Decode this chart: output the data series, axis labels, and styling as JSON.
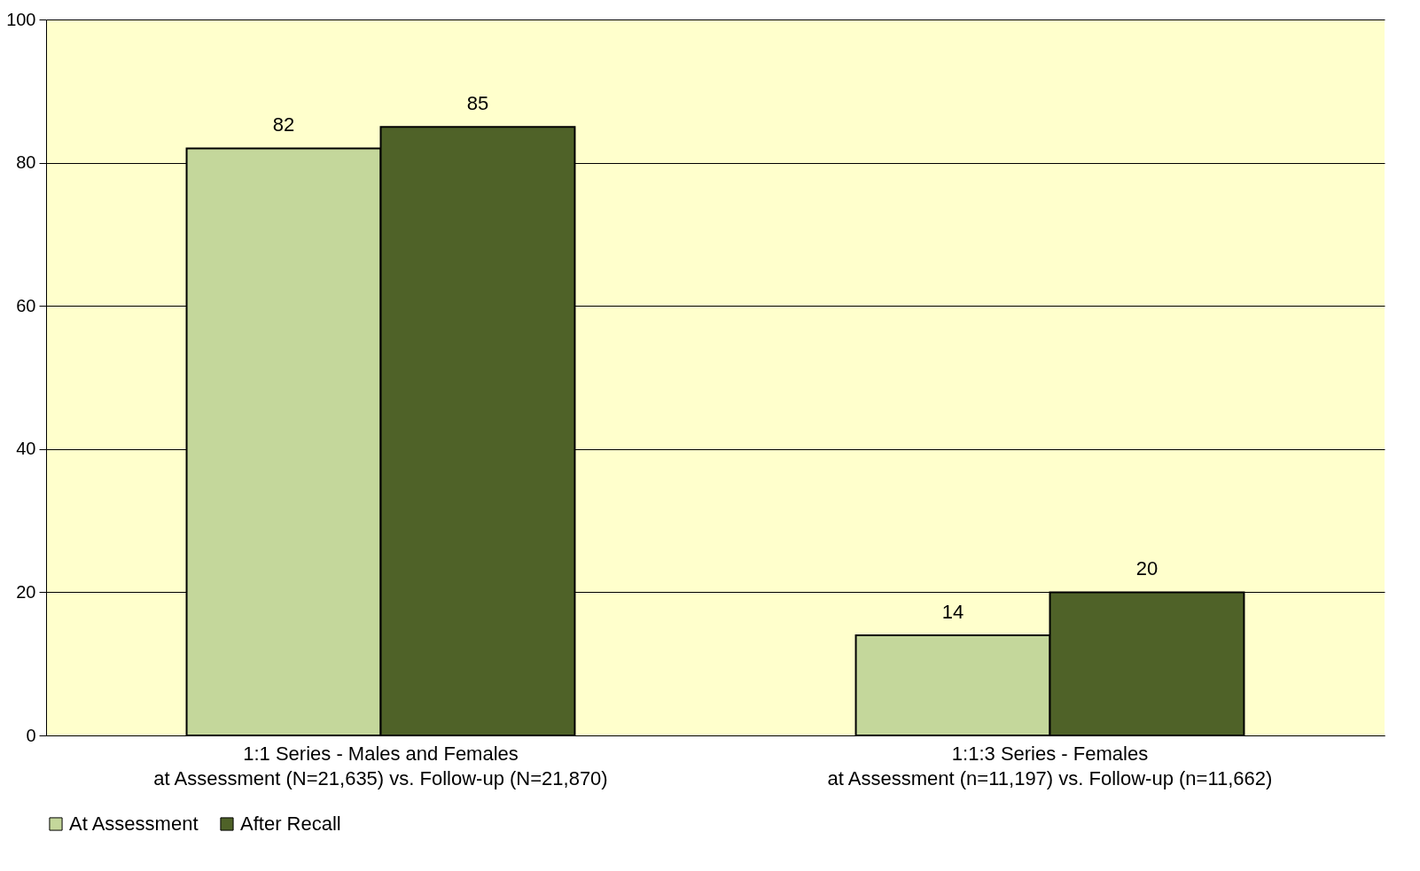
{
  "chart_data": {
    "type": "bar",
    "categories": [
      "1:1 Series - Males and Females\nat Assessment (N=21,635) vs. Follow-up (N=21,870)",
      "1:1:3 Series - Females\nat Assessment (n=11,197) vs. Follow-up (n=11,662)"
    ],
    "series": [
      {
        "name": "At Assessment",
        "color": "#c4d79b",
        "values": [
          82,
          14
        ]
      },
      {
        "name": "After Recall",
        "color": "#4f6228",
        "values": [
          85,
          20
        ]
      }
    ],
    "ylim": [
      0,
      100
    ],
    "yticks": [
      0,
      20,
      40,
      60,
      80,
      100
    ],
    "grid": "y",
    "legend": "bottom",
    "data_labels": true
  }
}
